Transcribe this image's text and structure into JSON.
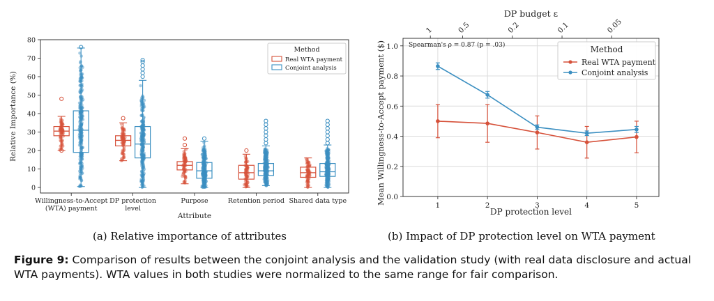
{
  "figure": {
    "label": "Figure 9:",
    "caption": "Comparison of results between the conjoint analysis and the validation study (with real data disclosure and actual WTA payments). WTA values in both studies were normalized to the same range for fair comparison."
  },
  "colors": {
    "real": "#d6513a",
    "conjoint": "#3b8fc1"
  },
  "chart_data": [
    {
      "type": "box",
      "caption": "(a) Relative importance of attributes",
      "xlabel": "Attribute",
      "ylabel": "Relative Importance (%)",
      "ylim": [
        -3,
        80
      ],
      "yticks": [
        0,
        10,
        20,
        30,
        40,
        50,
        60,
        70,
        80
      ],
      "grid": false,
      "categories": [
        "Willingness-to-Accept (WTA) payment",
        "DP protection level",
        "Purpose",
        "Retention period",
        "Shared data type"
      ],
      "category_lines": [
        [
          "Willingness-to-Accept",
          "(WTA) payment"
        ],
        [
          "DP protection",
          "level"
        ],
        [
          "Purpose"
        ],
        [
          "Retention period"
        ],
        [
          "Shared data type"
        ]
      ],
      "legend": {
        "title": "Method",
        "position": "top-right"
      },
      "series": [
        {
          "name": "Real WTA payment",
          "color_key": "real",
          "boxes": [
            {
              "whislo": 20,
              "q1": 28,
              "med": 30.5,
              "q3": 33,
              "whishi": 38.5,
              "fliers": [
                48,
                20
              ]
            },
            {
              "whislo": 14.5,
              "q1": 22.5,
              "med": 25.5,
              "q3": 28,
              "whishi": 35,
              "fliers": [
                37.5
              ]
            },
            {
              "whislo": 2,
              "q1": 9.5,
              "med": 12,
              "q3": 14,
              "whishi": 21,
              "fliers": [
                26.5,
                23
              ]
            },
            {
              "whislo": 0,
              "q1": 4.5,
              "med": 8,
              "q3": 12,
              "whishi": 18,
              "fliers": [
                20
              ]
            },
            {
              "whislo": 0,
              "q1": 5.5,
              "med": 8,
              "q3": 11,
              "whishi": 16,
              "fliers": []
            }
          ]
        },
        {
          "name": "Conjoint analysis",
          "color_key": "conjoint",
          "boxes": [
            {
              "whislo": 0.5,
              "q1": 19,
              "med": 31,
              "q3": 41.5,
              "whishi": 75.5,
              "fliers": [
                76
              ]
            },
            {
              "whislo": 0,
              "q1": 16,
              "med": 23.5,
              "q3": 33,
              "whishi": 58,
              "fliers": [
                69,
                68,
                66,
                64,
                62,
                60
              ]
            },
            {
              "whislo": 0,
              "q1": 5,
              "med": 9,
              "q3": 13.5,
              "whishi": 25,
              "fliers": [
                26.5
              ]
            },
            {
              "whislo": 1,
              "q1": 6.5,
              "med": 9,
              "q3": 13,
              "whishi": 22.5,
              "fliers": [
                36,
                34,
                32,
                30,
                28,
                26,
                24
              ]
            },
            {
              "whislo": 0,
              "q1": 6,
              "med": 8.5,
              "q3": 13,
              "whishi": 23,
              "fliers": [
                36,
                34,
                32,
                30,
                28,
                26,
                24
              ]
            }
          ]
        }
      ]
    },
    {
      "type": "line",
      "caption": "(b) Impact of DP protection level on WTA payment",
      "xlabel": "DP protection level",
      "ylabel": "Mean Willingness-to-Accept payment ($)",
      "top_xlabel": "DP budget ε",
      "x": [
        1,
        2,
        3,
        4,
        5
      ],
      "xlim": [
        0.3,
        5.45
      ],
      "ylim": [
        0,
        1.05
      ],
      "yticks": [
        0.0,
        0.2,
        0.4,
        0.6,
        0.8,
        1.0
      ],
      "top_ticks": [
        {
          "label": "1",
          "x": 0.85
        },
        {
          "label": "0.5",
          "x": 1.5
        },
        {
          "label": "0.2",
          "x": 2.5
        },
        {
          "label": "0.1",
          "x": 3.5
        },
        {
          "label": "0.05",
          "x": 4.5
        }
      ],
      "grid": true,
      "annotation": "Spearman's ρ = 0.87 (p = .03)",
      "legend": {
        "title": "Method",
        "position": "top-right"
      },
      "series": [
        {
          "name": "Real WTA payment",
          "color_key": "real",
          "values": [
            0.5,
            0.485,
            0.425,
            0.36,
            0.395
          ],
          "err": [
            0.11,
            0.125,
            0.11,
            0.105,
            0.105
          ]
        },
        {
          "name": "Conjoint analysis",
          "color_key": "conjoint",
          "values": [
            0.865,
            0.675,
            0.46,
            0.42,
            0.445
          ],
          "err": [
            0.022,
            0.022,
            0.015,
            0.015,
            0.02
          ]
        }
      ]
    }
  ]
}
